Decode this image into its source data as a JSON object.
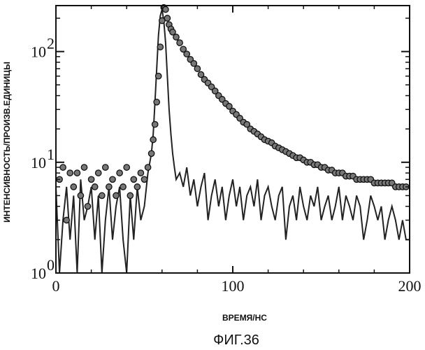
{
  "chart_data": {
    "type": "scatter",
    "xlabel": "ВРЕМЯ/НС",
    "ylabel": "ИНТЕНСИВНОСТЬ/ПРОИЗВ.ЕДИНИЦЫ",
    "caption": "ФИГ.36",
    "xlim": [
      0,
      200
    ],
    "ylim": [
      1,
      260
    ],
    "yscale": "log",
    "grid": false,
    "x_ticks": [
      "0",
      "100",
      "200"
    ],
    "y_ticks": [
      {
        "base": "10",
        "exp": "0",
        "value": 1
      },
      {
        "base": "10",
        "exp": "1",
        "value": 10
      },
      {
        "base": "10",
        "exp": "2",
        "value": 100
      }
    ],
    "series": [
      {
        "style": "markers",
        "x": [
          2,
          4,
          6,
          8,
          10,
          12,
          14,
          16,
          18,
          20,
          22,
          24,
          26,
          28,
          30,
          32,
          34,
          36,
          38,
          40,
          42,
          44,
          46,
          48,
          50,
          52,
          54,
          55,
          56,
          57,
          58,
          59,
          60,
          61,
          62,
          63,
          64,
          65,
          66,
          68,
          70,
          72,
          74,
          76,
          78,
          80,
          82,
          84,
          86,
          88,
          90,
          92,
          94,
          96,
          98,
          100,
          102,
          104,
          106,
          108,
          110,
          112,
          114,
          116,
          118,
          120,
          122,
          124,
          126,
          128,
          130,
          132,
          134,
          136,
          138,
          140,
          142,
          144,
          146,
          148,
          150,
          152,
          154,
          156,
          158,
          160,
          162,
          164,
          166,
          168,
          170,
          172,
          174,
          176,
          178,
          180,
          182,
          184,
          186,
          188,
          190,
          192,
          194,
          196,
          198
        ],
        "y": [
          7,
          9,
          3,
          8,
          6,
          8,
          5,
          9,
          4,
          7,
          6,
          8,
          5,
          9,
          6,
          7,
          5,
          8,
          6,
          9,
          5,
          7,
          6,
          8,
          7,
          9,
          12,
          16,
          22,
          35,
          60,
          110,
          190,
          250,
          240,
          200,
          175,
          160,
          150,
          135,
          120,
          105,
          95,
          85,
          78,
          70,
          62,
          56,
          52,
          48,
          44,
          40,
          37,
          34,
          32,
          29,
          27,
          25,
          23,
          22,
          20,
          19,
          18,
          17,
          16,
          15.5,
          15,
          14,
          13.5,
          13,
          12.5,
          12,
          11.5,
          11,
          11,
          10.5,
          10,
          10,
          9.5,
          9.5,
          9,
          9,
          8.5,
          8.5,
          8,
          8,
          8,
          7.5,
          7.5,
          7.5,
          7,
          7,
          7,
          7,
          7,
          6.5,
          6.5,
          6.5,
          6.5,
          6.5,
          6.5,
          6,
          6,
          6,
          6
        ]
      },
      {
        "style": "line",
        "x": [
          0,
          2,
          4,
          6,
          8,
          10,
          12,
          14,
          16,
          18,
          20,
          22,
          24,
          26,
          28,
          30,
          32,
          34,
          36,
          38,
          40,
          42,
          44,
          46,
          48,
          50,
          52,
          54,
          55,
          56,
          57,
          58,
          59,
          60,
          61,
          62,
          63,
          64,
          65,
          66,
          67,
          68,
          70,
          72,
          74,
          76,
          78,
          80,
          82,
          84,
          86,
          88,
          90,
          92,
          94,
          96,
          98,
          100,
          102,
          104,
          106,
          108,
          110,
          112,
          114,
          116,
          118,
          120,
          122,
          124,
          126,
          128,
          130,
          132,
          134,
          136,
          138,
          140,
          142,
          144,
          146,
          148,
          150,
          152,
          154,
          156,
          158,
          160,
          162,
          164,
          166,
          168,
          170,
          172,
          174,
          176,
          178,
          180,
          182,
          184,
          186,
          188,
          190,
          192,
          194,
          196,
          198,
          200
        ],
        "y": [
          6,
          1,
          3,
          6,
          2,
          5,
          1,
          7,
          3,
          4,
          6,
          2,
          5,
          1,
          3,
          6,
          2,
          4,
          6,
          2,
          1,
          5,
          2,
          6,
          3,
          4,
          8,
          12,
          18,
          35,
          70,
          140,
          210,
          240,
          190,
          120,
          60,
          30,
          18,
          12,
          9,
          7,
          8,
          6,
          9,
          5,
          7,
          4,
          6,
          8,
          3,
          5,
          7,
          4,
          6,
          3,
          5,
          7,
          4,
          6,
          3,
          5,
          6,
          4,
          7,
          3,
          5,
          6,
          4,
          3,
          5,
          6,
          2,
          4,
          5,
          3,
          6,
          4,
          3,
          5,
          4,
          6,
          3,
          4,
          5,
          3,
          4,
          6,
          3,
          5,
          4,
          3,
          5,
          4,
          2,
          3,
          5,
          4,
          3,
          4,
          2,
          3,
          4,
          3,
          2,
          3,
          2,
          2
        ]
      }
    ]
  }
}
